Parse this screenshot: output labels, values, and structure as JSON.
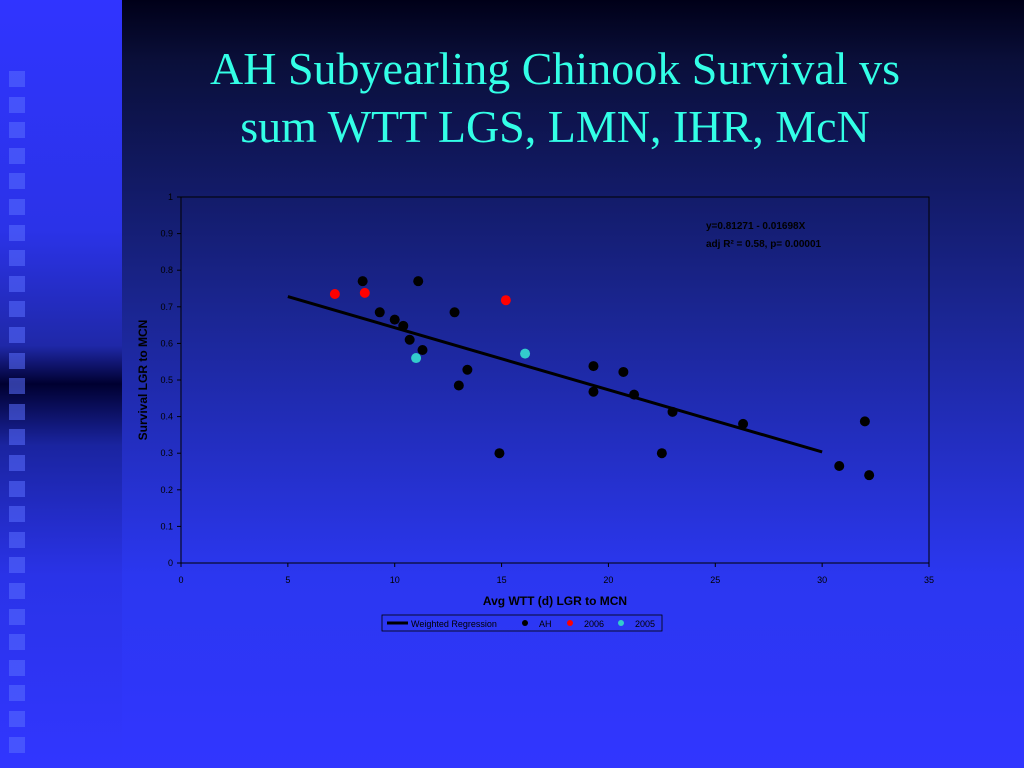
{
  "slide": {
    "title_line1": "AH Subyearling Chinook Survival vs",
    "title_line2": "sum WTT  LGS, LMN, IHR, McN"
  },
  "colors": {
    "title": "#33ffe6",
    "ah": "#000000",
    "y2006": "#ff0000",
    "y2005": "#33cccc",
    "regression": "#000000"
  },
  "chart_data": {
    "type": "scatter",
    "xlabel": "Avg WTT (d) LGR to MCN",
    "ylabel": "Survival LGR to MCN",
    "xlim": [
      0,
      35
    ],
    "ylim": [
      0,
      1
    ],
    "xticks": [
      "0",
      "5",
      "10",
      "15",
      "20",
      "25",
      "30",
      "35"
    ],
    "yticks": [
      "0",
      "0.1",
      "0.2",
      "0.3",
      "0.4",
      "0.5",
      "0.6",
      "0.7",
      "0.8",
      "0.9",
      "1"
    ],
    "annotation_line1": "y=0.81271 - 0.01698X",
    "annotation_line2": "adj R² = 0.58, p= 0.00001",
    "legend": [
      "Weighted Regression",
      "AH",
      "2006",
      "2005"
    ],
    "legend_position": "bottom",
    "regression": {
      "intercept": 0.81271,
      "slope": -0.01698,
      "x_range": [
        5,
        30
      ]
    },
    "series": [
      {
        "name": "AH",
        "points": [
          [
            8.5,
            0.77
          ],
          [
            11.1,
            0.77
          ],
          [
            9.3,
            0.685
          ],
          [
            10.0,
            0.665
          ],
          [
            10.4,
            0.648
          ],
          [
            12.8,
            0.685
          ],
          [
            10.7,
            0.61
          ],
          [
            11.3,
            0.582
          ],
          [
            13.4,
            0.528
          ],
          [
            13.0,
            0.485
          ],
          [
            14.9,
            0.3
          ],
          [
            19.3,
            0.538
          ],
          [
            20.7,
            0.522
          ],
          [
            19.3,
            0.468
          ],
          [
            21.2,
            0.46
          ],
          [
            23.0,
            0.413
          ],
          [
            22.5,
            0.3
          ],
          [
            26.3,
            0.38
          ],
          [
            30.8,
            0.265
          ],
          [
            32.0,
            0.387
          ],
          [
            32.2,
            0.24
          ]
        ]
      },
      {
        "name": "2006",
        "points": [
          [
            7.2,
            0.735
          ],
          [
            8.6,
            0.738
          ],
          [
            15.2,
            0.718
          ]
        ]
      },
      {
        "name": "2005",
        "points": [
          [
            11.0,
            0.56
          ],
          [
            16.1,
            0.572
          ]
        ]
      }
    ]
  }
}
